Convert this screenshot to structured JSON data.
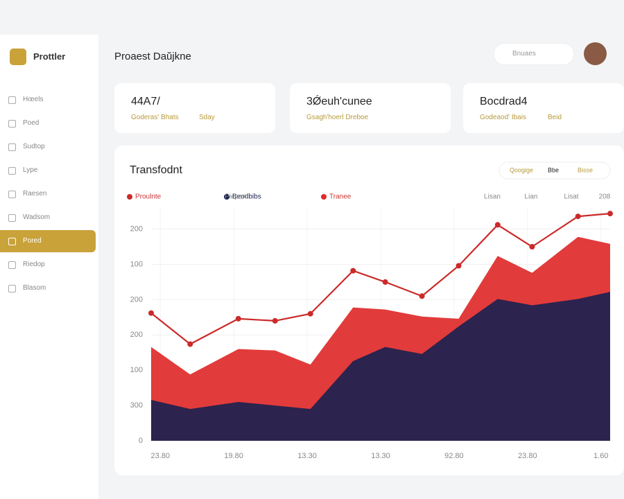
{
  "sidebar": {
    "brand": "Prottler",
    "items": [
      "Hœels",
      "Poed",
      "Sudtop",
      "Lype",
      "Raesen",
      "Wadsom",
      "Pored",
      "Riedop",
      "Blasom"
    ],
    "active": 6
  },
  "header": {
    "title": "Proaest Daŭjkne",
    "search": "Bnuaes"
  },
  "cards": [
    {
      "title": "44A7/",
      "sub": "Goderas' Bhats",
      "tag": "Sday"
    },
    {
      "title": "3Ǿeuh'cunee",
      "sub": "Gsagh'hoerl Dreboe",
      "tag": ""
    },
    {
      "title": "Bocdrad4",
      "sub": "Godeaod' Ibais",
      "tag": "Beid"
    }
  ],
  "chart_data": {
    "type": "line",
    "title": "Transfodnt",
    "toggles": [
      "Qoogige",
      "Bbe",
      "Bisse"
    ],
    "legend_extra": [
      "Pieport",
      "Lisan",
      "Lian",
      "Lisat",
      "208"
    ],
    "xlim": [
      0,
      100
    ],
    "xticks": [
      {
        "value": 2,
        "label": "23.80"
      },
      {
        "value": 18,
        "label": "19.80"
      },
      {
        "value": 34,
        "label": "13.30"
      },
      {
        "value": 50,
        "label": "13.30"
      },
      {
        "value": 66,
        "label": "92.80"
      },
      {
        "value": 82,
        "label": "23.80"
      },
      {
        "value": 98,
        "label": "1.60"
      }
    ],
    "ylim": [
      0,
      330
    ],
    "yticks": [
      0,
      {
        "value": 50,
        "label": "300"
      },
      {
        "value": 100,
        "label": "100"
      },
      {
        "value": 150,
        "label": "200"
      },
      {
        "value": 200,
        "label": "200"
      },
      {
        "value": 250,
        "label": "100"
      },
      {
        "value": 300,
        "label": "200"
      }
    ],
    "x": [
      0,
      8.5,
      19,
      27,
      34.7,
      44,
      51,
      59,
      67,
      75.5,
      83,
      93,
      100
    ],
    "series": [
      {
        "name": "Tranee",
        "kind": "area",
        "color": "#e02a2a",
        "values": [
          133,
          94,
          130,
          128,
          108,
          189,
          186,
          176,
          173,
          262,
          238,
          289,
          279
        ]
      },
      {
        "name": "Beodbibs",
        "kind": "area",
        "color": "#1c2250",
        "values": [
          58,
          45,
          55,
          50,
          45,
          113,
          133,
          123,
          162,
          201,
          192,
          201,
          211
        ]
      },
      {
        "name": "Proulnte",
        "kind": "line",
        "color": "#cc2a2a",
        "values": [
          181,
          137,
          173,
          170,
          180,
          241,
          225,
          205,
          248,
          306,
          275,
          318,
          322
        ]
      }
    ]
  }
}
